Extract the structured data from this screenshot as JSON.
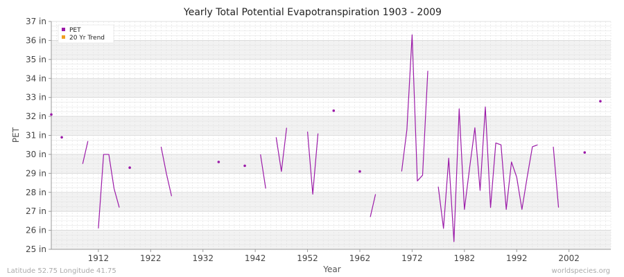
{
  "chart_data": {
    "type": "line",
    "title": "Yearly Total Potential Evapotranspiration 1903 - 2009",
    "xlabel": "Year",
    "ylabel": "PET",
    "xlim": [
      1903,
      2010
    ],
    "ylim": [
      25,
      37
    ],
    "x_ticks": [
      1912,
      1922,
      1932,
      1942,
      1952,
      1962,
      1972,
      1982,
      1992,
      2002
    ],
    "y_ticks": [
      {
        "value": 25,
        "label": "25 in"
      },
      {
        "value": 26,
        "label": "26 in"
      },
      {
        "value": 27,
        "label": "27 in"
      },
      {
        "value": 28,
        "label": "28 in"
      },
      {
        "value": 29,
        "label": "29 in"
      },
      {
        "value": 30,
        "label": "30 in"
      },
      {
        "value": 31,
        "label": "31 in"
      },
      {
        "value": 32,
        "label": "32 in"
      },
      {
        "value": 33,
        "label": "33 in"
      },
      {
        "value": 34,
        "label": "34 in"
      },
      {
        "value": 35,
        "label": "35 in"
      },
      {
        "value": 36,
        "label": "36 in"
      },
      {
        "value": 37,
        "label": "37 in"
      }
    ],
    "grid": true,
    "legend_position": "top-left",
    "legend": [
      {
        "name": "PET",
        "color": "#9b1aa8"
      },
      {
        "name": "20 Yr Trend",
        "color": "#f0a020"
      }
    ],
    "series": [
      {
        "name": "PET",
        "color": "#9b1aa8",
        "points": [
          {
            "x": 1903,
            "y": 32.1
          },
          {
            "x": 1905,
            "y": 30.9
          },
          {
            "x": 1909,
            "y": 29.5
          },
          {
            "x": 1910,
            "y": 30.7
          },
          {
            "x": 1912,
            "y": 26.1
          },
          {
            "x": 1913,
            "y": 30.0
          },
          {
            "x": 1914,
            "y": 30.0
          },
          {
            "x": 1915,
            "y": 28.2
          },
          {
            "x": 1916,
            "y": 27.2
          },
          {
            "x": 1918,
            "y": 29.3
          },
          {
            "x": 1924,
            "y": 30.4
          },
          {
            "x": 1925,
            "y": 29.0
          },
          {
            "x": 1926,
            "y": 27.8
          },
          {
            "x": 1935,
            "y": 29.6
          },
          {
            "x": 1940,
            "y": 29.4
          },
          {
            "x": 1943,
            "y": 30.0
          },
          {
            "x": 1944,
            "y": 28.2
          },
          {
            "x": 1946,
            "y": 30.9
          },
          {
            "x": 1947,
            "y": 29.1
          },
          {
            "x": 1948,
            "y": 31.4
          },
          {
            "x": 1952,
            "y": 31.2
          },
          {
            "x": 1953,
            "y": 27.9
          },
          {
            "x": 1954,
            "y": 31.1
          },
          {
            "x": 1957,
            "y": 32.3
          },
          {
            "x": 1962,
            "y": 29.1
          },
          {
            "x": 1964,
            "y": 26.7
          },
          {
            "x": 1965,
            "y": 27.9
          },
          {
            "x": 1970,
            "y": 29.1
          },
          {
            "x": 1971,
            "y": 31.3
          },
          {
            "x": 1972,
            "y": 36.3
          },
          {
            "x": 1973,
            "y": 28.6
          },
          {
            "x": 1974,
            "y": 28.9
          },
          {
            "x": 1975,
            "y": 34.4
          },
          {
            "x": 1977,
            "y": 28.3
          },
          {
            "x": 1978,
            "y": 26.1
          },
          {
            "x": 1979,
            "y": 29.8
          },
          {
            "x": 1980,
            "y": 25.4
          },
          {
            "x": 1981,
            "y": 32.4
          },
          {
            "x": 1982,
            "y": 27.1
          },
          {
            "x": 1983,
            "y": 29.3
          },
          {
            "x": 1984,
            "y": 31.4
          },
          {
            "x": 1985,
            "y": 28.1
          },
          {
            "x": 1986,
            "y": 32.5
          },
          {
            "x": 1987,
            "y": 27.2
          },
          {
            "x": 1988,
            "y": 30.6
          },
          {
            "x": 1989,
            "y": 30.5
          },
          {
            "x": 1990,
            "y": 27.1
          },
          {
            "x": 1991,
            "y": 29.6
          },
          {
            "x": 1992,
            "y": 28.8
          },
          {
            "x": 1993,
            "y": 27.1
          },
          {
            "x": 1994,
            "y": 28.8
          },
          {
            "x": 1995,
            "y": 30.4
          },
          {
            "x": 1996,
            "y": 30.5
          },
          {
            "x": 1999,
            "y": 30.4
          },
          {
            "x": 2000,
            "y": 27.2
          },
          {
            "x": 2005,
            "y": 30.1
          },
          {
            "x": 2008,
            "y": 32.8
          }
        ]
      }
    ]
  },
  "footer": {
    "left": "Latitude 52.75 Longitude 41.75",
    "right": "worldspecies.org"
  }
}
